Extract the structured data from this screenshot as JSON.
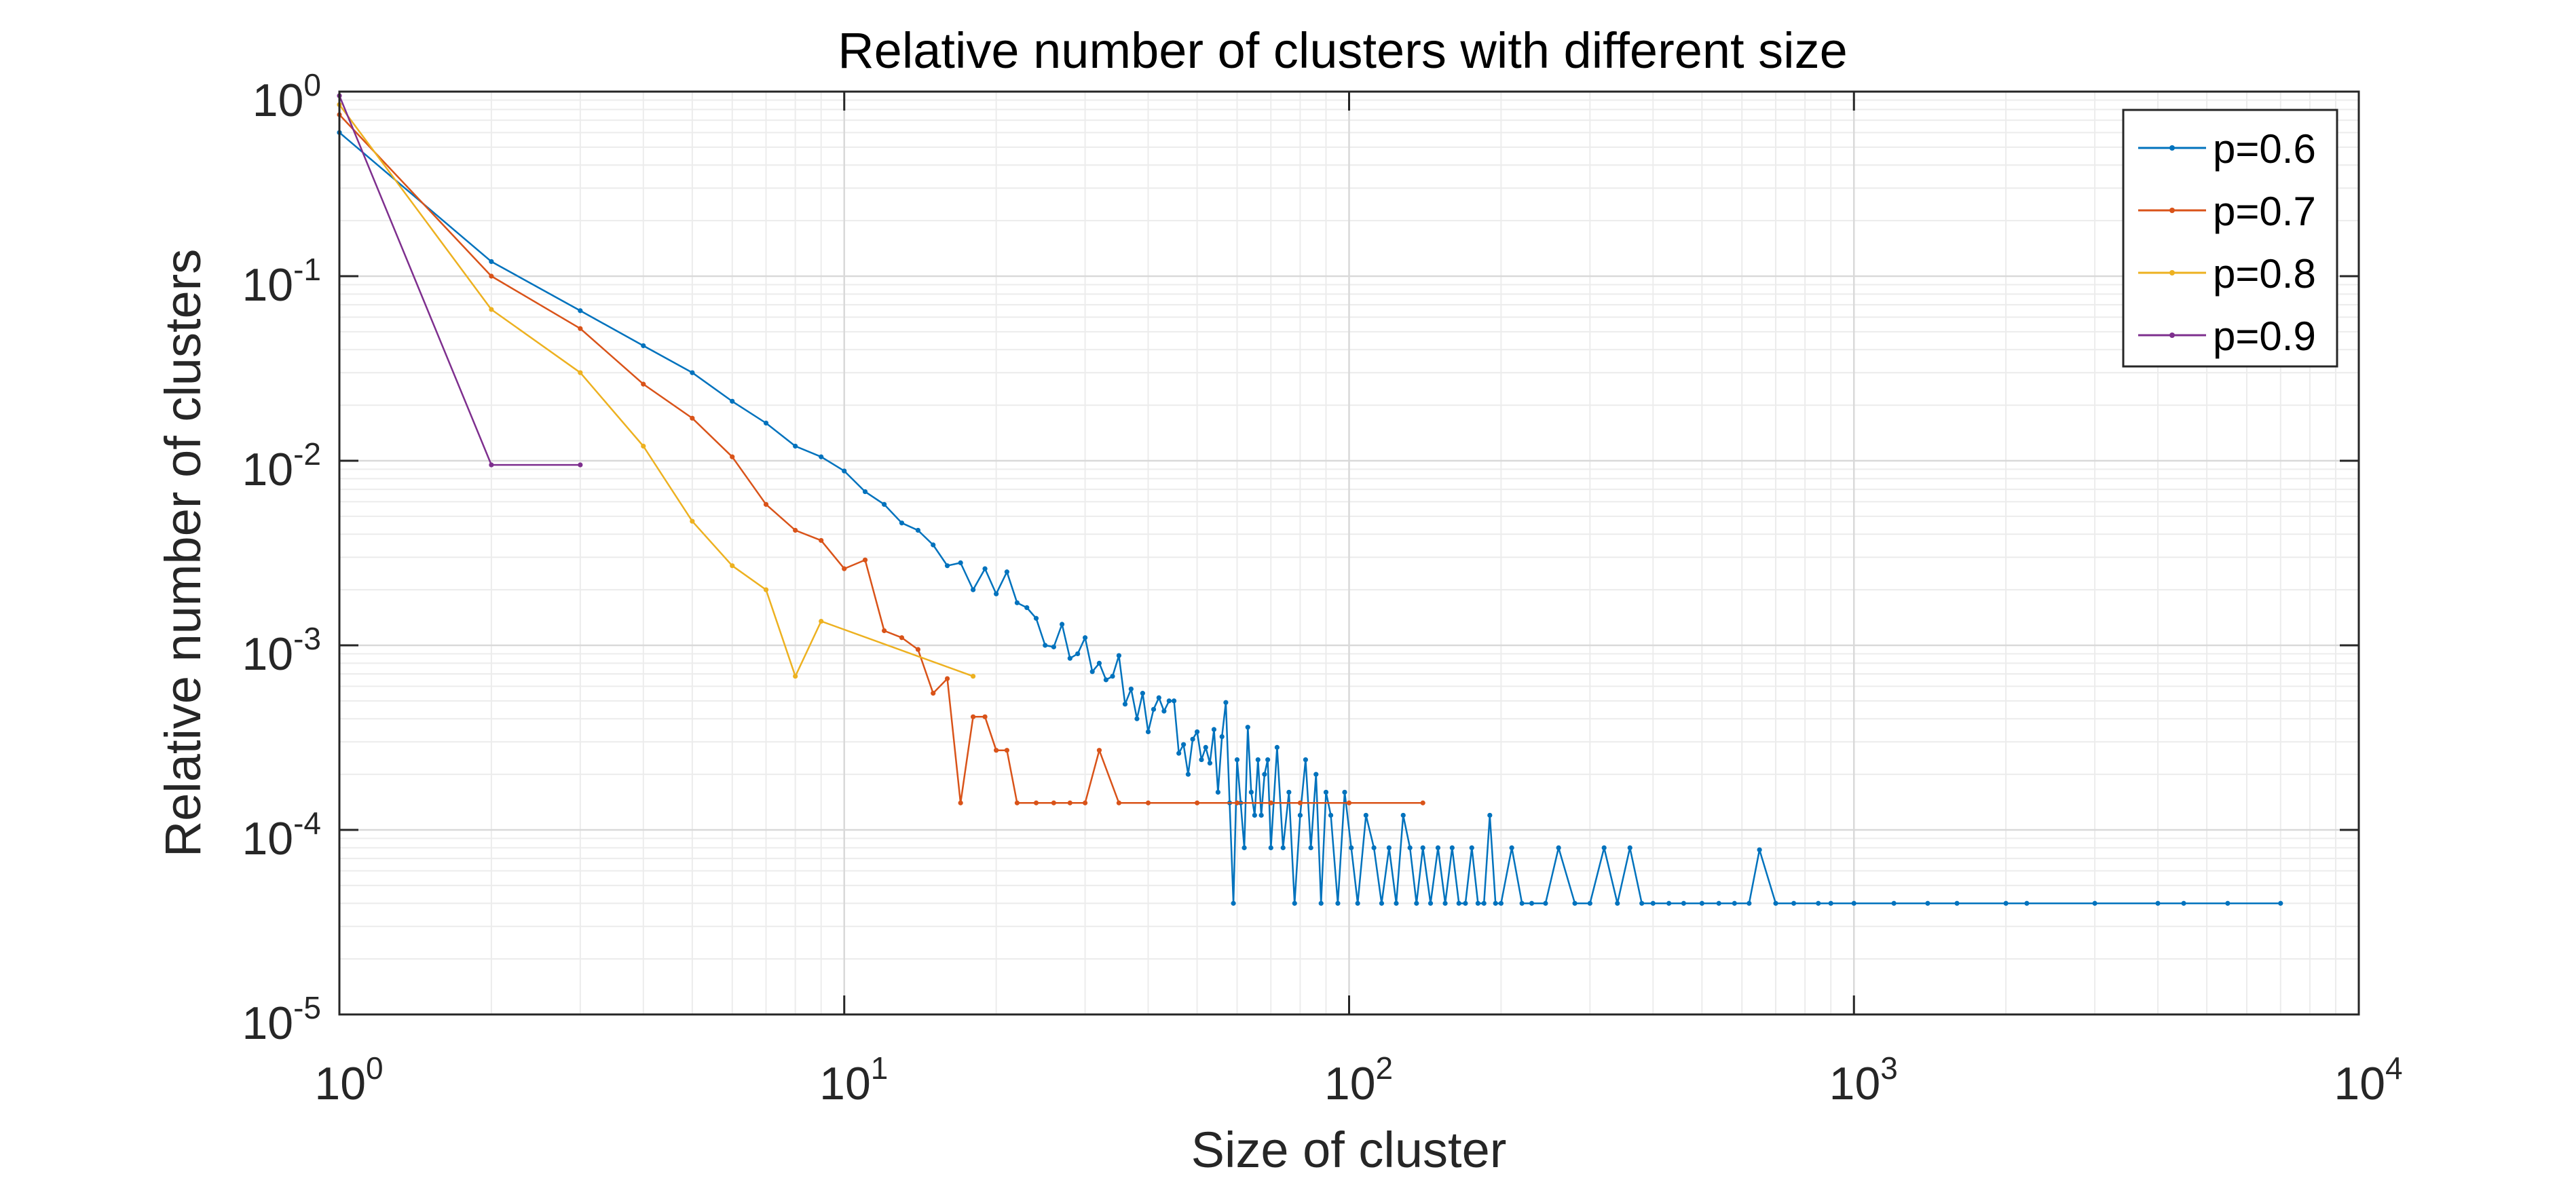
{
  "chart_data": {
    "type": "line",
    "title": "Relative number of clusters with different size",
    "xlabel": "Size of cluster",
    "ylabel": "Relative number of clusters",
    "xscale": "log",
    "yscale": "log",
    "xlim": [
      1,
      10000
    ],
    "ylim": [
      1e-05,
      1
    ],
    "grid": true,
    "minor_grid": true,
    "legend_position": "top-right",
    "x_ticks": [
      {
        "base": "10",
        "exp": "0",
        "value": 1
      },
      {
        "base": "10",
        "exp": "1",
        "value": 10
      },
      {
        "base": "10",
        "exp": "2",
        "value": 100
      },
      {
        "base": "10",
        "exp": "3",
        "value": 1000
      },
      {
        "base": "10",
        "exp": "4",
        "value": 10000
      }
    ],
    "y_ticks": [
      {
        "base": "10",
        "exp": "0",
        "value": 1
      },
      {
        "base": "10",
        "exp": "-1",
        "value": 0.1
      },
      {
        "base": "10",
        "exp": "-2",
        "value": 0.01
      },
      {
        "base": "10",
        "exp": "-3",
        "value": 0.001
      },
      {
        "base": "10",
        "exp": "-4",
        "value": 0.0001
      },
      {
        "base": "10",
        "exp": "-5",
        "value": 1e-05
      }
    ],
    "series": [
      {
        "name": "p=0.6",
        "color": "#0072BD",
        "points": [
          [
            1,
            0.6
          ],
          [
            2,
            0.12
          ],
          [
            3,
            0.065
          ],
          [
            4,
            0.042
          ],
          [
            5,
            0.03
          ],
          [
            6,
            0.021
          ],
          [
            7,
            0.016
          ],
          [
            8,
            0.012
          ],
          [
            9,
            0.0105
          ],
          [
            10,
            0.0088
          ],
          [
            11,
            0.0068
          ],
          [
            12,
            0.0058
          ],
          [
            13,
            0.0046
          ],
          [
            14,
            0.0042
          ],
          [
            15,
            0.0035
          ],
          [
            16,
            0.0027
          ],
          [
            17,
            0.0028
          ],
          [
            18,
            0.002
          ],
          [
            19,
            0.0026
          ],
          [
            20,
            0.0019
          ],
          [
            21,
            0.0025
          ],
          [
            22,
            0.0017
          ],
          [
            23,
            0.0016
          ],
          [
            24,
            0.0014
          ],
          [
            25,
            0.001
          ],
          [
            26,
            0.00098
          ],
          [
            27,
            0.0013
          ],
          [
            28,
            0.00085
          ],
          [
            29,
            0.0009
          ],
          [
            30,
            0.0011
          ],
          [
            31,
            0.00072
          ],
          [
            32,
            0.0008
          ],
          [
            33,
            0.00065
          ],
          [
            34,
            0.00068
          ],
          [
            35,
            0.00088
          ],
          [
            36,
            0.00048
          ],
          [
            37,
            0.00058
          ],
          [
            38,
            0.0004
          ],
          [
            39,
            0.00055
          ],
          [
            40,
            0.00034
          ],
          [
            41,
            0.00045
          ],
          [
            42,
            0.00052
          ],
          [
            43,
            0.00044
          ],
          [
            44,
            0.0005
          ],
          [
            45,
            0.0005
          ],
          [
            46,
            0.00026
          ],
          [
            47,
            0.00029
          ],
          [
            48,
            0.0002
          ],
          [
            49,
            0.00031
          ],
          [
            50,
            0.00034
          ],
          [
            51,
            0.00024
          ],
          [
            52,
            0.00028
          ],
          [
            53,
            0.00023
          ],
          [
            54,
            0.00035
          ],
          [
            55,
            0.00016
          ],
          [
            56,
            0.00032
          ],
          [
            57,
            0.00049
          ],
          [
            58,
            0.00014
          ],
          [
            59,
            4e-05
          ],
          [
            60,
            0.00024
          ],
          [
            61,
            0.00014
          ],
          [
            62,
            8e-05
          ],
          [
            63,
            0.00036
          ],
          [
            64,
            0.00016
          ],
          [
            65,
            0.00012
          ],
          [
            66,
            0.00024
          ],
          [
            67,
            0.00012
          ],
          [
            68,
            0.0002
          ],
          [
            69,
            0.00024
          ],
          [
            70,
            8e-05
          ],
          [
            72,
            0.00028
          ],
          [
            74,
            8e-05
          ],
          [
            76,
            0.00016
          ],
          [
            78,
            4e-05
          ],
          [
            80,
            0.00012
          ],
          [
            82,
            0.00024
          ],
          [
            84,
            8e-05
          ],
          [
            86,
            0.0002
          ],
          [
            88,
            4e-05
          ],
          [
            90,
            0.00016
          ],
          [
            92,
            0.00012
          ],
          [
            95,
            4e-05
          ],
          [
            98,
            0.00016
          ],
          [
            101,
            8e-05
          ],
          [
            104,
            4e-05
          ],
          [
            108,
            0.00012
          ],
          [
            112,
            8e-05
          ],
          [
            116,
            4e-05
          ],
          [
            120,
            8e-05
          ],
          [
            124,
            4e-05
          ],
          [
            128,
            0.00012
          ],
          [
            132,
            8e-05
          ],
          [
            136,
            4e-05
          ],
          [
            140,
            8e-05
          ],
          [
            145,
            4e-05
          ],
          [
            150,
            8e-05
          ],
          [
            155,
            4e-05
          ],
          [
            160,
            8e-05
          ],
          [
            165,
            4e-05
          ],
          [
            170,
            4e-05
          ],
          [
            175,
            8e-05
          ],
          [
            180,
            4e-05
          ],
          [
            185,
            4e-05
          ],
          [
            190,
            0.00012
          ],
          [
            195,
            4e-05
          ],
          [
            200,
            4e-05
          ],
          [
            210,
            8e-05
          ],
          [
            220,
            4e-05
          ],
          [
            230,
            4e-05
          ],
          [
            245,
            4e-05
          ],
          [
            260,
            8e-05
          ],
          [
            280,
            4e-05
          ],
          [
            300,
            4e-05
          ],
          [
            320,
            8e-05
          ],
          [
            340,
            4e-05
          ],
          [
            360,
            8e-05
          ],
          [
            380,
            4e-05
          ],
          [
            400,
            4e-05
          ],
          [
            430,
            4e-05
          ],
          [
            460,
            4e-05
          ],
          [
            500,
            4e-05
          ],
          [
            540,
            4e-05
          ],
          [
            580,
            4e-05
          ],
          [
            620,
            4e-05
          ],
          [
            650,
            7.8e-05
          ],
          [
            700,
            4e-05
          ],
          [
            760,
            4e-05
          ],
          [
            850,
            4e-05
          ],
          [
            900,
            4e-05
          ],
          [
            1000,
            4e-05
          ],
          [
            1200,
            4e-05
          ],
          [
            1400,
            4e-05
          ],
          [
            1600,
            4e-05
          ],
          [
            2000,
            4e-05
          ],
          [
            2200,
            4e-05
          ],
          [
            3000,
            4e-05
          ],
          [
            4000,
            4e-05
          ],
          [
            4500,
            4e-05
          ],
          [
            5500,
            4e-05
          ],
          [
            7000,
            4e-05
          ]
        ]
      },
      {
        "name": "p=0.7",
        "color": "#D95319",
        "points": [
          [
            1,
            0.75
          ],
          [
            2,
            0.1
          ],
          [
            3,
            0.052
          ],
          [
            4,
            0.026
          ],
          [
            5,
            0.017
          ],
          [
            6,
            0.0105
          ],
          [
            7,
            0.0058
          ],
          [
            8,
            0.0042
          ],
          [
            9,
            0.0037
          ],
          [
            10,
            0.0026
          ],
          [
            11,
            0.0029
          ],
          [
            12,
            0.0012
          ],
          [
            13,
            0.0011
          ],
          [
            14,
            0.00095
          ],
          [
            15,
            0.00055
          ],
          [
            16,
            0.00066
          ],
          [
            17,
            0.00014
          ],
          [
            18,
            0.00041
          ],
          [
            19,
            0.00041
          ],
          [
            20,
            0.00027
          ],
          [
            21,
            0.00027
          ],
          [
            22,
            0.00014
          ],
          [
            24,
            0.00014
          ],
          [
            26,
            0.00014
          ],
          [
            28,
            0.00014
          ],
          [
            30,
            0.00014
          ],
          [
            32,
            0.00027
          ],
          [
            35,
            0.00014
          ],
          [
            40,
            0.00014
          ],
          [
            50,
            0.00014
          ],
          [
            60,
            0.00014
          ],
          [
            70,
            0.00014
          ],
          [
            80,
            0.00014
          ],
          [
            100,
            0.00014
          ],
          [
            140,
            0.00014
          ]
        ]
      },
      {
        "name": "p=0.8",
        "color": "#EDB120",
        "points": [
          [
            1,
            0.85
          ],
          [
            2,
            0.066
          ],
          [
            3,
            0.03
          ],
          [
            4,
            0.012
          ],
          [
            5,
            0.0047
          ],
          [
            6,
            0.0027
          ],
          [
            7,
            0.002
          ],
          [
            8,
            0.00068
          ],
          [
            9,
            0.00135
          ],
          [
            18,
            0.00068
          ]
        ]
      },
      {
        "name": "p=0.9",
        "color": "#7E2F8E",
        "points": [
          [
            1,
            0.95
          ],
          [
            2,
            0.0095
          ],
          [
            3,
            0.0095
          ]
        ]
      }
    ]
  }
}
